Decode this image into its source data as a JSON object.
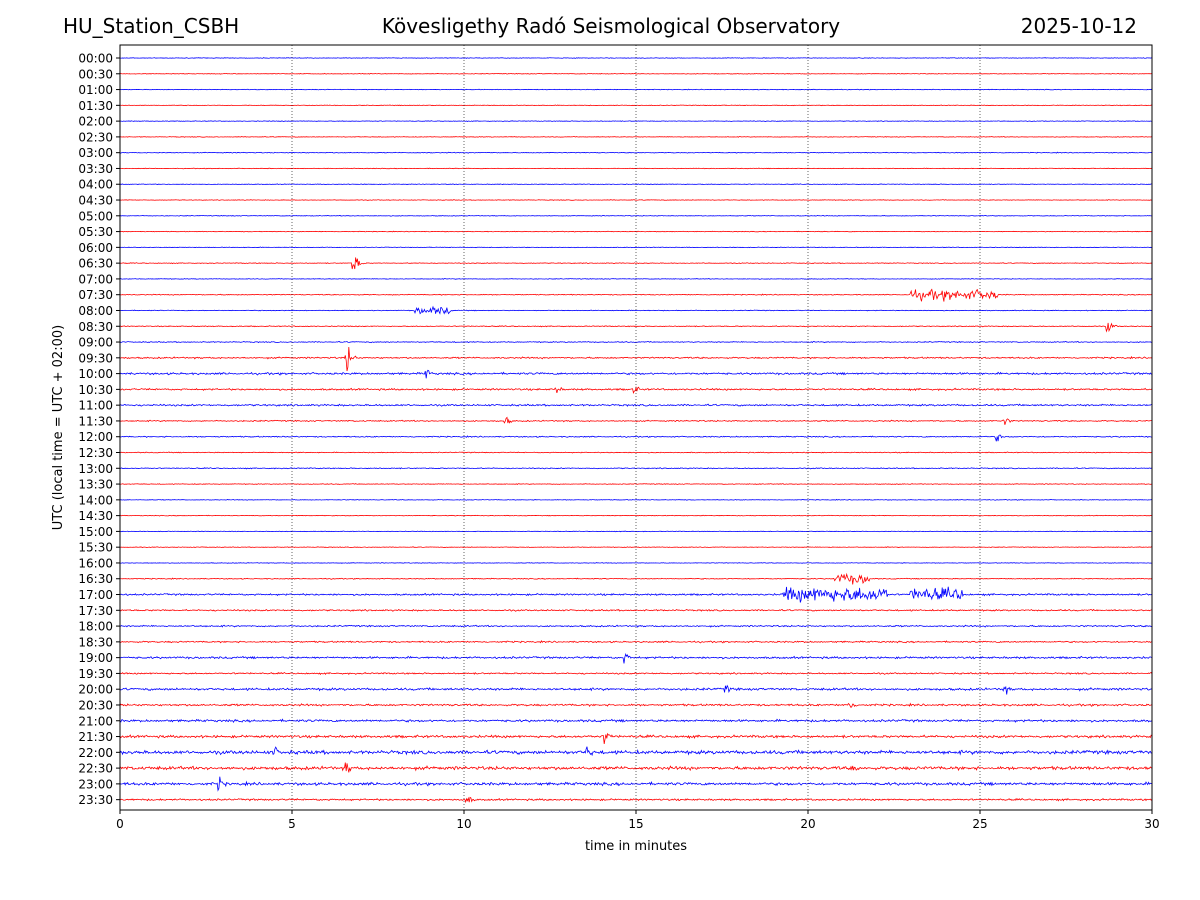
{
  "header": {
    "station": "HU_Station_CSBH",
    "observatory": "Kövesligethy Radó Seismological Observatory",
    "date": "2025-10-12"
  },
  "chart_data": {
    "type": "line",
    "title": "Kövesligethy Radó Seismological Observatory",
    "xlabel": "time in minutes",
    "ylabel": "UTC (local time = UTC + 02:00)",
    "xlim": [
      0,
      30
    ],
    "xticks": [
      0,
      5,
      10,
      15,
      20,
      25,
      30
    ],
    "grid": "vertical dotted lines at 5-minute ticks",
    "colors": {
      "even_rows": "#0000ff",
      "odd_rows": "#ff0000"
    },
    "rows": [
      "00:00",
      "00:30",
      "01:00",
      "01:30",
      "02:00",
      "02:30",
      "03:00",
      "03:30",
      "04:00",
      "04:30",
      "05:00",
      "05:30",
      "06:00",
      "06:30",
      "07:00",
      "07:30",
      "08:00",
      "08:30",
      "09:00",
      "09:30",
      "10:00",
      "10:30",
      "11:00",
      "11:30",
      "12:00",
      "12:30",
      "13:00",
      "13:30",
      "14:00",
      "14:30",
      "15:00",
      "15:30",
      "16:00",
      "16:30",
      "17:00",
      "17:30",
      "18:00",
      "18:30",
      "19:00",
      "19:30",
      "20:00",
      "20:30",
      "21:00",
      "21:30",
      "22:00",
      "22:30",
      "23:00",
      "23:30"
    ],
    "noise_level": [
      0.25,
      0.25,
      0.25,
      0.25,
      0.25,
      0.25,
      0.3,
      0.25,
      0.25,
      0.25,
      0.25,
      0.25,
      0.25,
      0.3,
      0.25,
      0.35,
      0.3,
      0.35,
      0.4,
      0.6,
      0.8,
      0.7,
      0.7,
      0.5,
      0.45,
      0.35,
      0.4,
      0.3,
      0.25,
      0.25,
      0.25,
      0.25,
      0.25,
      0.35,
      0.7,
      0.6,
      0.6,
      0.6,
      0.8,
      0.6,
      0.9,
      0.8,
      0.9,
      1.0,
      1.4,
      1.3,
      1.1,
      0.7
    ],
    "events": [
      {
        "row": "06:30",
        "minute": 6.8,
        "amplitude": 11
      },
      {
        "row": "07:30",
        "minute": 23.0,
        "amplitude": 4,
        "duration": 2.5
      },
      {
        "row": "08:00",
        "minute": 8.6,
        "amplitude": 3,
        "duration": 1
      },
      {
        "row": "08:30",
        "minute": 28.7,
        "amplitude": 7
      },
      {
        "row": "09:30",
        "minute": 6.6,
        "amplitude": 13
      },
      {
        "row": "10:00",
        "minute": 8.9,
        "amplitude": 5
      },
      {
        "row": "10:30",
        "minute": 14.9,
        "amplitude": 6
      },
      {
        "row": "10:30",
        "minute": 12.7,
        "amplitude": 4
      },
      {
        "row": "11:30",
        "minute": 11.2,
        "amplitude": 5
      },
      {
        "row": "11:30",
        "minute": 25.7,
        "amplitude": 5
      },
      {
        "row": "12:00",
        "minute": 25.5,
        "amplitude": 4
      },
      {
        "row": "16:30",
        "minute": 20.8,
        "amplitude": 4,
        "duration": 1
      },
      {
        "row": "17:00",
        "minute": 19.3,
        "amplitude": 6,
        "duration": 3
      },
      {
        "row": "17:00",
        "minute": 23.0,
        "amplitude": 5,
        "duration": 1.5
      },
      {
        "row": "19:00",
        "minute": 14.7,
        "amplitude": 5
      },
      {
        "row": "20:00",
        "minute": 17.6,
        "amplitude": 5
      },
      {
        "row": "20:00",
        "minute": 25.7,
        "amplitude": 6
      },
      {
        "row": "20:30",
        "minute": 21.2,
        "amplitude": 7
      },
      {
        "row": "21:30",
        "minute": 14.1,
        "amplitude": 8
      },
      {
        "row": "22:00",
        "minute": 4.5,
        "amplitude": 6
      },
      {
        "row": "22:00",
        "minute": 13.6,
        "amplitude": 7
      },
      {
        "row": "22:30",
        "minute": 6.6,
        "amplitude": 6
      },
      {
        "row": "22:30",
        "minute": 21.3,
        "amplitude": 6
      },
      {
        "row": "23:00",
        "minute": 2.9,
        "amplitude": 6
      },
      {
        "row": "23:30",
        "minute": 10.1,
        "amplitude": 5
      }
    ]
  }
}
